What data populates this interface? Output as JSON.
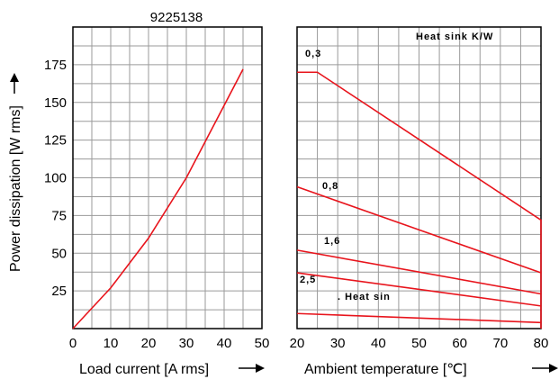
{
  "chart_data": [
    {
      "type": "line",
      "title": "9225138",
      "xlabel": "Load current [A rms]",
      "ylabel": "Power dissipation [W rms]",
      "xlim": [
        0,
        50
      ],
      "ylim": [
        0,
        200
      ],
      "x_ticks": [
        "0",
        "10",
        "20",
        "30",
        "40",
        "50"
      ],
      "y_ticks": [
        "25",
        "50",
        "75",
        "100",
        "125",
        "150",
        "175"
      ],
      "grid": true,
      "series": [
        {
          "x": [
            0,
            10,
            20,
            30,
            45
          ],
          "y": [
            0,
            27,
            60,
            100,
            172
          ]
        }
      ]
    },
    {
      "type": "line",
      "xlabel": "Ambient temperature [℃]",
      "xlim": [
        20,
        80
      ],
      "ylim": [
        0,
        200
      ],
      "x_ticks": [
        "20",
        "30",
        "40",
        "50",
        "60",
        "70",
        "80"
      ],
      "grid": true,
      "legend_title": "Heat sink K/W",
      "series": [
        {
          "name": "0,3",
          "x": [
            20,
            25,
            80,
            80
          ],
          "y": [
            170,
            170,
            72,
            0
          ]
        },
        {
          "name": "0,8",
          "x": [
            20,
            80
          ],
          "y": [
            94,
            37
          ]
        },
        {
          "name": "1,6",
          "x": [
            20,
            80
          ],
          "y": [
            52,
            23
          ]
        },
        {
          "name": "2,5",
          "x": [
            20,
            80
          ],
          "y": [
            37,
            15
          ]
        },
        {
          "name": ". Heat sin",
          "x": [
            20,
            80
          ],
          "y": [
            10,
            4
          ]
        }
      ]
    }
  ]
}
